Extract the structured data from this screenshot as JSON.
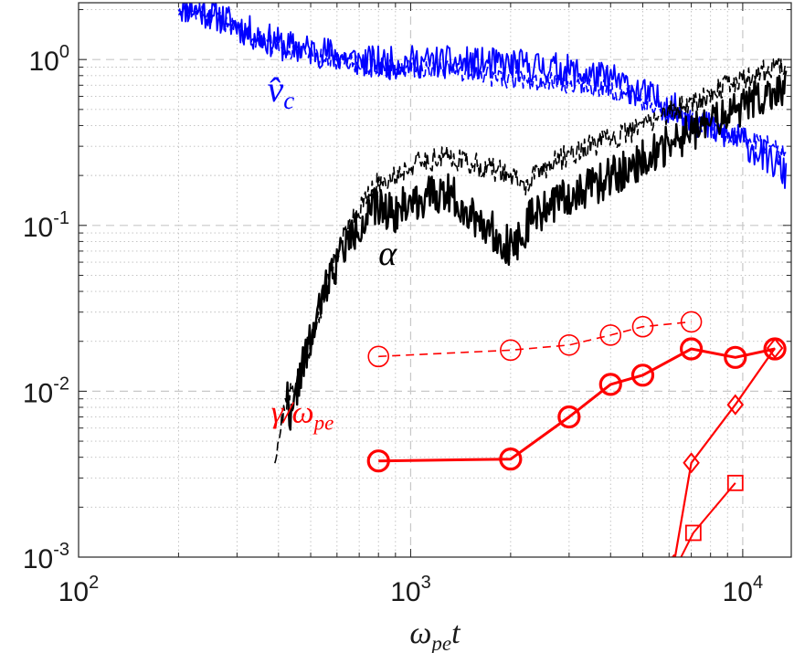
{
  "chart_data": {
    "type": "line",
    "title": "",
    "xscale": "log",
    "yscale": "log",
    "xlim": [
      100,
      14000
    ],
    "ylim": [
      0.001,
      2.2
    ],
    "grid": true,
    "x_ticks": [
      {
        "base": "10",
        "exp": "2",
        "value": 100
      },
      {
        "base": "10",
        "exp": "3",
        "value": 1000
      },
      {
        "base": "10",
        "exp": "4",
        "value": 10000
      }
    ],
    "y_ticks": [
      {
        "base": "10",
        "exp": "-3",
        "value": 0.001
      },
      {
        "base": "10",
        "exp": "-2",
        "value": 0.01
      },
      {
        "base": "10",
        "exp": "-1",
        "value": 0.1
      },
      {
        "base": "10",
        "exp": "0",
        "value": 1
      }
    ],
    "xlabel": {
      "main": "ω",
      "sub": "pe",
      "tail": "t"
    },
    "annotations": [
      {
        "name": "vc-annotation",
        "main": "v̂",
        "sub": "c",
        "color": "#0000ff",
        "x": 370,
        "y": 0.56
      },
      {
        "name": "alpha-annotation",
        "main": "α",
        "sub": "",
        "color": "#000000",
        "x": 800,
        "y": 0.058
      },
      {
        "name": "gamma-annotation",
        "main": "γ/ω",
        "sub": "pe",
        "color": "#ff0000",
        "x": 380,
        "y": 0.0065
      }
    ],
    "series": [
      {
        "name": "v_c solid",
        "color": "#0000ff",
        "style": "solid",
        "width": 1.8,
        "noise": 0.1,
        "seed": 11,
        "x": [
          200,
          260,
          330,
          420,
          560,
          700,
          850,
          1000,
          1300,
          1700,
          2100,
          2600,
          3300,
          4200,
          5200,
          6500,
          8000,
          10000,
          12000,
          13500
        ],
        "y": [
          2.1,
          1.85,
          1.45,
          1.2,
          1.1,
          0.98,
          0.95,
          0.97,
          0.96,
          0.94,
          0.92,
          0.9,
          0.82,
          0.74,
          0.6,
          0.48,
          0.38,
          0.32,
          0.25,
          0.2
        ]
      },
      {
        "name": "v_c dashed",
        "color": "#0000ff",
        "style": "dashed",
        "width": 1.6,
        "noise": 0.06,
        "seed": 12,
        "x": [
          200,
          260,
          330,
          420,
          560,
          700,
          850,
          1000,
          1300,
          1700,
          2100,
          2600,
          3300,
          4200,
          5200,
          6500,
          8000,
          10000,
          12000,
          13500
        ],
        "y": [
          2.1,
          1.8,
          1.4,
          1.15,
          1.02,
          0.92,
          0.88,
          0.9,
          0.87,
          0.8,
          0.76,
          0.74,
          0.7,
          0.65,
          0.55,
          0.46,
          0.38,
          0.34,
          0.3,
          0.28
        ]
      },
      {
        "name": "alpha dashed",
        "color": "#000000",
        "style": "dashed",
        "width": 1.6,
        "noise": 0.07,
        "seed": 21,
        "x": [
          390,
          420,
          460,
          520,
          580,
          650,
          730,
          800,
          900,
          1000,
          1150,
          1300,
          1500,
          1700,
          1900,
          2000,
          2200,
          2500,
          3000,
          3500,
          4500,
          5500,
          7000,
          9000,
          11000,
          13500
        ],
        "y": [
          0.004,
          0.0085,
          0.012,
          0.025,
          0.06,
          0.1,
          0.14,
          0.18,
          0.2,
          0.23,
          0.25,
          0.26,
          0.24,
          0.22,
          0.21,
          0.2,
          0.17,
          0.22,
          0.27,
          0.3,
          0.36,
          0.45,
          0.55,
          0.7,
          0.82,
          0.95
        ]
      },
      {
        "name": "alpha solid",
        "color": "#000000",
        "style": "solid",
        "width": 2.4,
        "noise": 0.12,
        "seed": 22,
        "x": [
          420,
          440,
          460,
          500,
          560,
          620,
          700,
          800,
          900,
          1000,
          1150,
          1300,
          1500,
          1700,
          1900,
          2000,
          2100,
          2300,
          2600,
          3000,
          3500,
          4500,
          5500,
          7000,
          9000,
          11000,
          13500
        ],
        "y": [
          0.0105,
          0.0065,
          0.012,
          0.02,
          0.045,
          0.07,
          0.1,
          0.13,
          0.12,
          0.14,
          0.15,
          0.16,
          0.12,
          0.1,
          0.08,
          0.075,
          0.08,
          0.11,
          0.13,
          0.15,
          0.17,
          0.22,
          0.28,
          0.36,
          0.47,
          0.58,
          0.7
        ]
      },
      {
        "name": "gamma thin dashed circles",
        "color": "#ff0000",
        "style": "dashed",
        "width": 1.6,
        "noise": 0,
        "marker": "circle",
        "marker_size": 11,
        "marker_stroke": 1.6,
        "x": [
          800,
          2000,
          3000,
          4000,
          5000,
          7000
        ],
        "y": [
          0.0162,
          0.0177,
          0.019,
          0.0218,
          0.0245,
          0.0262
        ]
      },
      {
        "name": "gamma thick circles",
        "color": "#ff0000",
        "style": "solid",
        "width": 3.0,
        "noise": 0,
        "marker": "circle",
        "marker_size": 11,
        "marker_stroke": 3.2,
        "x": [
          800,
          2000,
          3000,
          4000,
          5000,
          7000,
          9500,
          12500
        ],
        "y": [
          0.0038,
          0.0039,
          0.007,
          0.011,
          0.0125,
          0.018,
          0.016,
          0.018
        ]
      },
      {
        "name": "gamma diamonds",
        "color": "#ff0000",
        "style": "solid",
        "width": 2.2,
        "noise": 0,
        "marker": "diamond",
        "marker_size": 10,
        "marker_stroke": 2.0,
        "x": [
          6200,
          7000,
          9500,
          12500
        ],
        "y": [
          0.0009,
          0.0037,
          0.0083,
          0.0182
        ]
      },
      {
        "name": "gamma squares",
        "color": "#ff0000",
        "style": "solid",
        "width": 2.0,
        "noise": 0,
        "marker": "square",
        "marker_size": 8,
        "marker_stroke": 1.8,
        "x": [
          6350,
          7100,
          9500
        ],
        "y": [
          0.0009,
          0.0014,
          0.0028
        ]
      }
    ]
  }
}
